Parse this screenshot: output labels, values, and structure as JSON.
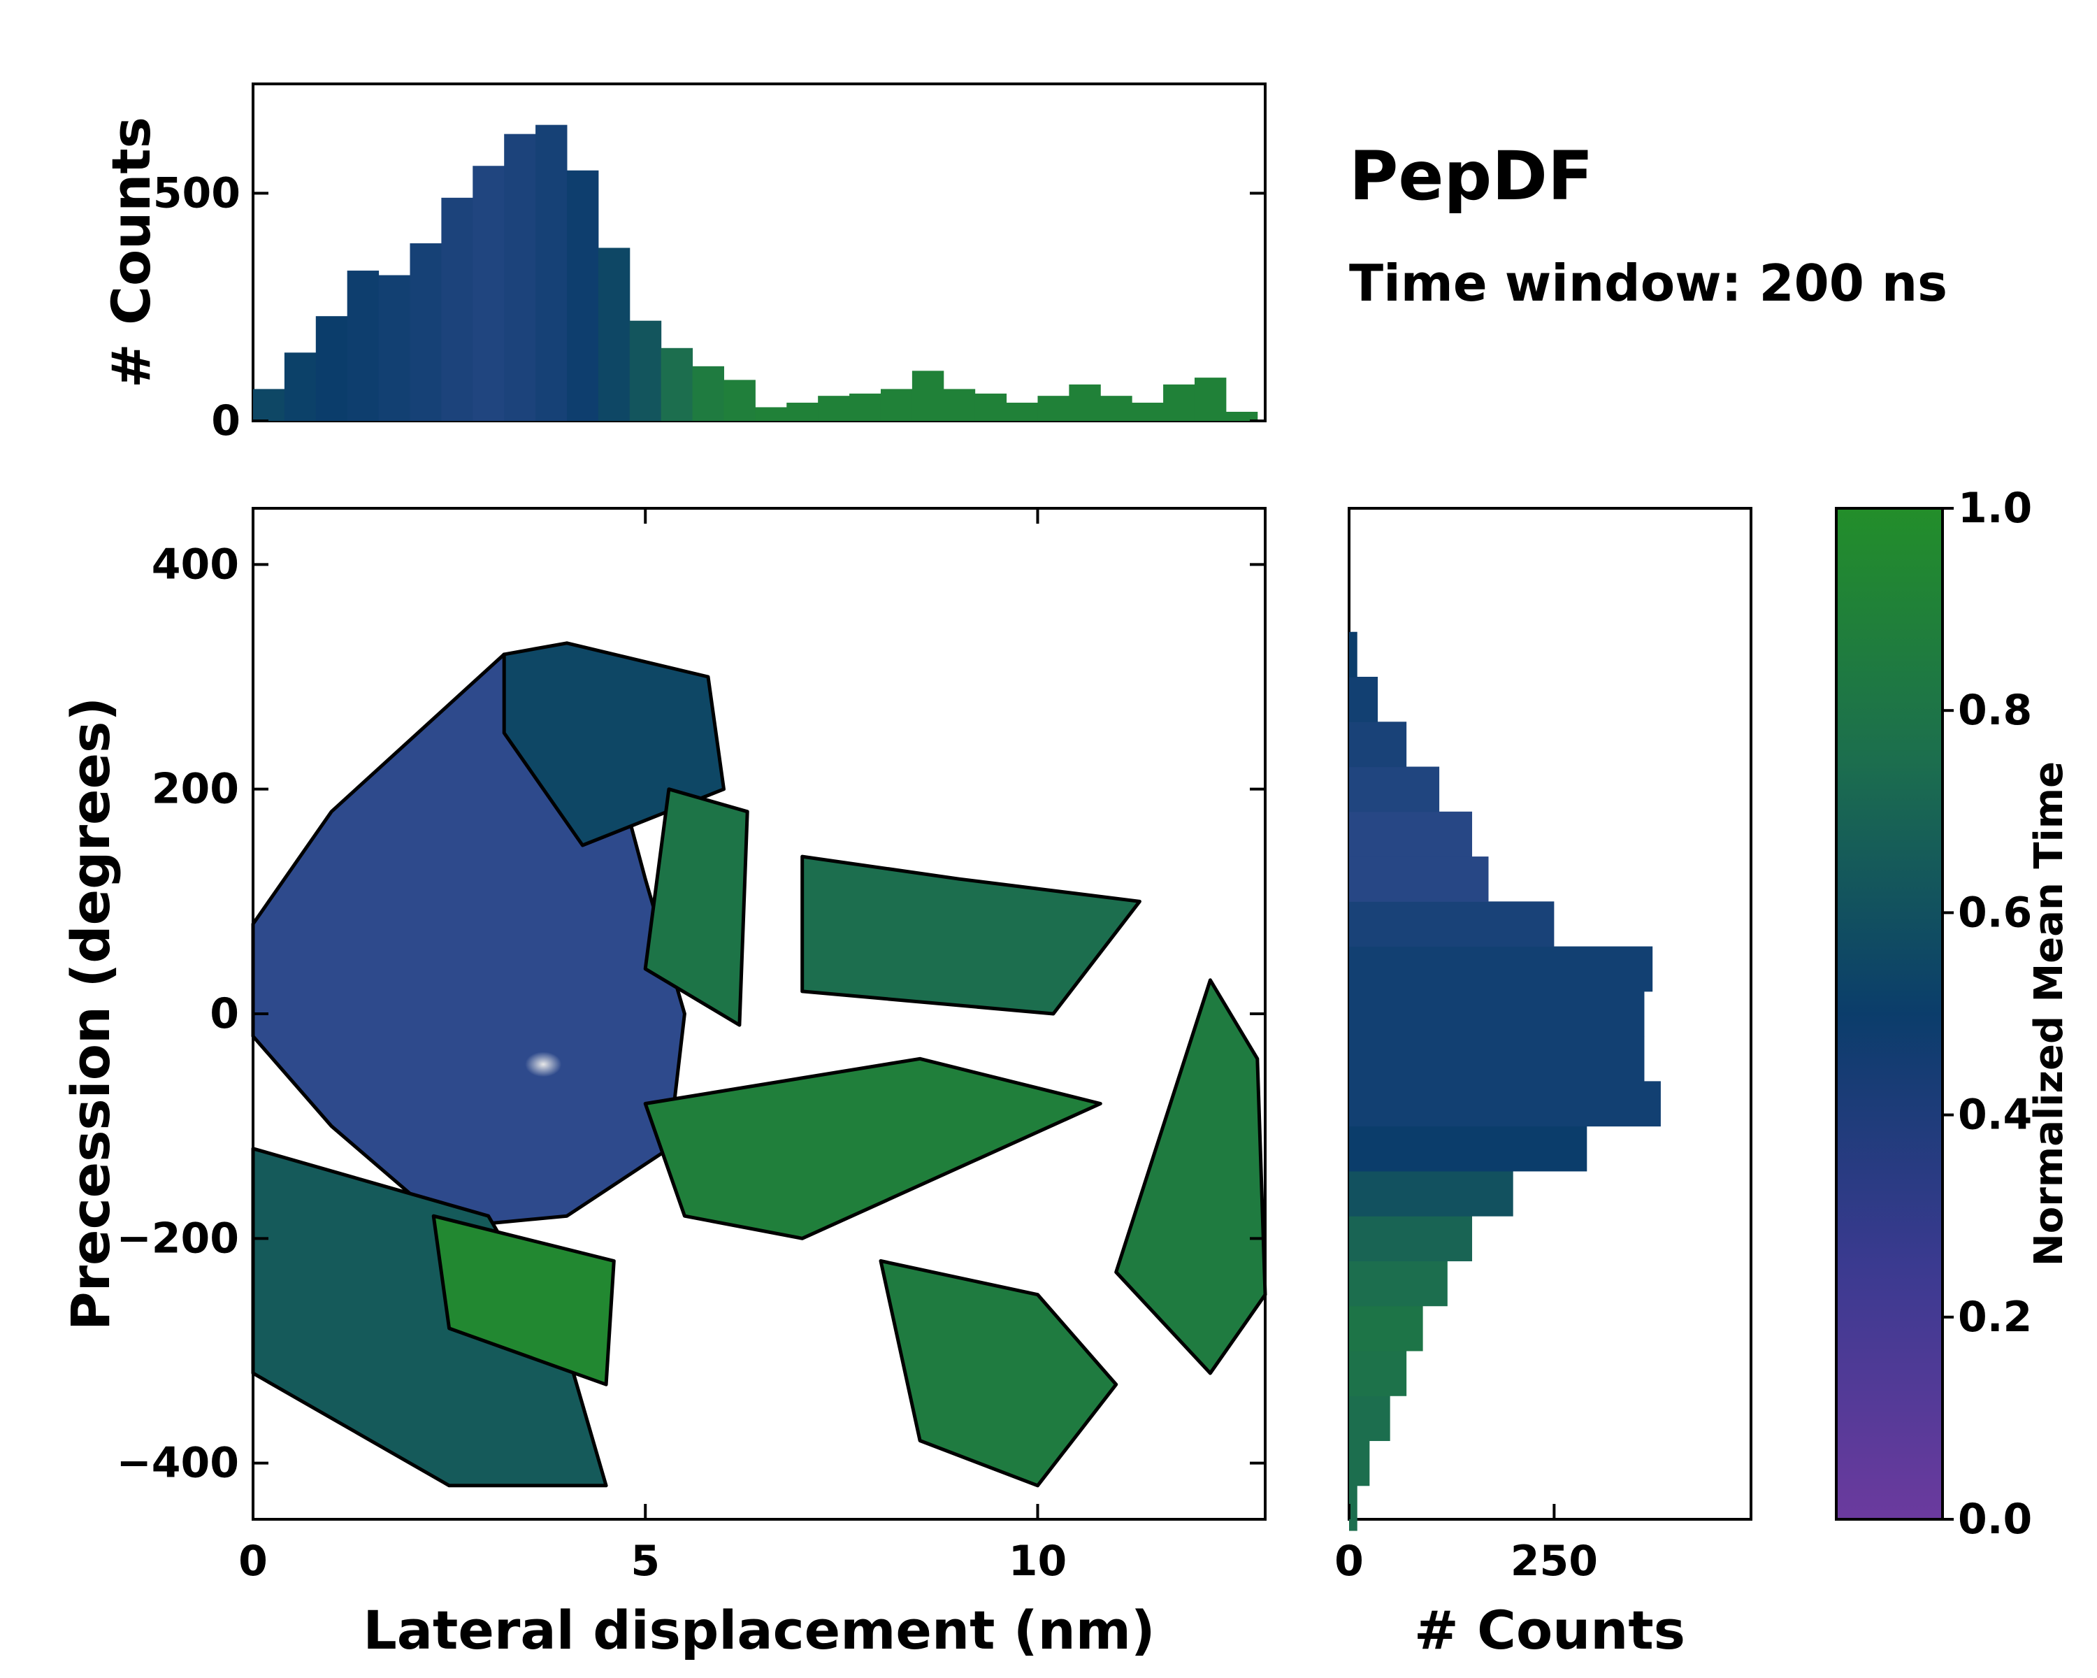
{
  "chart_data": [
    {
      "type": "histogram",
      "panel": "top",
      "ylabel": "# Counts",
      "xlim": [
        0,
        12.9
      ],
      "ylim": [
        0,
        740
      ],
      "yticks": [
        0,
        500
      ],
      "bin_centers": [
        0.2,
        0.6,
        1.0,
        1.4,
        1.8,
        2.2,
        2.6,
        3.0,
        3.4,
        3.8,
        4.2,
        4.6,
        5.0,
        5.4,
        5.8,
        6.2,
        6.6,
        7.0,
        7.4,
        7.8,
        8.2,
        8.6,
        9.0,
        9.4,
        9.8,
        10.2,
        10.6,
        11.0,
        11.4,
        11.8,
        12.2,
        12.6
      ],
      "counts": [
        70,
        150,
        230,
        330,
        320,
        390,
        490,
        560,
        630,
        650,
        550,
        380,
        220,
        160,
        120,
        90,
        30,
        40,
        55,
        60,
        70,
        110,
        70,
        60,
        40,
        55,
        80,
        55,
        40,
        80,
        95,
        20
      ],
      "mean_time": [
        0.55,
        0.52,
        0.5,
        0.48,
        0.45,
        0.42,
        0.38,
        0.35,
        0.38,
        0.42,
        0.48,
        0.55,
        0.62,
        0.75,
        0.85,
        0.88,
        0.9,
        0.9,
        0.9,
        0.9,
        0.9,
        0.9,
        0.9,
        0.9,
        0.9,
        0.9,
        0.9,
        0.9,
        0.9,
        0.9,
        0.9,
        0.9
      ]
    },
    {
      "type": "heatmap",
      "panel": "main",
      "xlabel": "Lateral displacement (nm)",
      "ylabel": "Precession (degrees)",
      "xlim": [
        0,
        12.9
      ],
      "ylim": [
        -450,
        450
      ],
      "xticks": [
        0,
        5,
        10
      ],
      "yticks": [
        -400,
        -200,
        0,
        200,
        400
      ],
      "ytick_labels": [
        "−400",
        "−200",
        "0",
        "200",
        "400"
      ],
      "regions": [
        {
          "x": [
            0.0,
            1.0,
            3.2,
            4.0,
            4.5,
            5.0,
            5.5,
            5.3,
            4.0,
            2.5,
            1.0,
            0.0
          ],
          "y": [
            80,
            180,
            320,
            300,
            250,
            120,
            0,
            -120,
            -180,
            -190,
            -100,
            -20
          ],
          "mean_time": 0.25
        },
        {
          "x": [
            3.2,
            4.0,
            5.8,
            6.0,
            4.2,
            3.2
          ],
          "y": [
            320,
            330,
            300,
            200,
            150,
            250
          ],
          "mean_time": 0.55
        },
        {
          "x": [
            5.3,
            6.3,
            6.2,
            5.0
          ],
          "y": [
            200,
            180,
            -10,
            40
          ],
          "mean_time": 0.8
        },
        {
          "x": [
            7.0,
            9.0,
            11.3,
            10.2,
            7.0
          ],
          "y": [
            140,
            120,
            100,
            0,
            20
          ],
          "mean_time": 0.75
        },
        {
          "x": [
            12.2,
            12.8,
            12.9,
            12.2,
            11.0
          ],
          "y": [
            30,
            -40,
            -250,
            -320,
            -230
          ],
          "mean_time": 0.85
        },
        {
          "x": [
            5.0,
            8.5,
            10.8,
            7.0,
            5.5
          ],
          "y": [
            -80,
            -40,
            -80,
            -200,
            -180
          ],
          "mean_time": 0.88
        },
        {
          "x": [
            8.0,
            10.0,
            11.0,
            10.0,
            8.5
          ],
          "y": [
            -220,
            -250,
            -330,
            -420,
            -380
          ],
          "mean_time": 0.85
        },
        {
          "x": [
            0.0,
            3.0,
            4.0,
            4.5,
            2.5,
            0.0
          ],
          "y": [
            -120,
            -180,
            -300,
            -420,
            -420,
            -320
          ],
          "mean_time": 0.65
        },
        {
          "x": [
            2.3,
            4.6,
            4.5,
            2.5
          ],
          "y": [
            -180,
            -220,
            -330,
            -280
          ],
          "mean_time": 0.95
        }
      ],
      "density_peak": {
        "x": 3.7,
        "y": -45
      }
    },
    {
      "type": "histogram",
      "panel": "right",
      "xlabel": "# Counts",
      "orientation": "horizontal",
      "xlim": [
        0,
        490
      ],
      "xticks": [
        0,
        250
      ],
      "ylim": [
        -450,
        450
      ],
      "bin_centers": [
        -440,
        -400,
        -360,
        -320,
        -280,
        -240,
        -200,
        -160,
        -120,
        -80,
        -40,
        0,
        40,
        80,
        120,
        160,
        200,
        240,
        280,
        320
      ],
      "counts": [
        10,
        25,
        50,
        70,
        90,
        120,
        150,
        200,
        290,
        380,
        360,
        360,
        370,
        250,
        170,
        150,
        110,
        70,
        35,
        10
      ],
      "mean_time": [
        0.75,
        0.75,
        0.75,
        0.78,
        0.8,
        0.75,
        0.7,
        0.6,
        0.5,
        0.45,
        0.45,
        0.45,
        0.45,
        0.4,
        0.3,
        0.3,
        0.35,
        0.4,
        0.45,
        0.5
      ]
    },
    {
      "type": "colorbar",
      "label": "Normalized Mean Time",
      "range": [
        0,
        1
      ],
      "ticks": [
        0.0,
        0.2,
        0.4,
        0.6,
        0.8,
        1.0
      ],
      "tick_labels": [
        "0.0",
        "0.2",
        "0.4",
        "0.6",
        "0.8",
        "1.0"
      ],
      "colors": [
        "#6b3a9e",
        "#2e4a8c",
        "#0b3d6b",
        "#1c6e4e",
        "#238e2a"
      ]
    }
  ],
  "annotation": {
    "title": "PepDF",
    "subtitle": "Time window: 200 ns"
  }
}
